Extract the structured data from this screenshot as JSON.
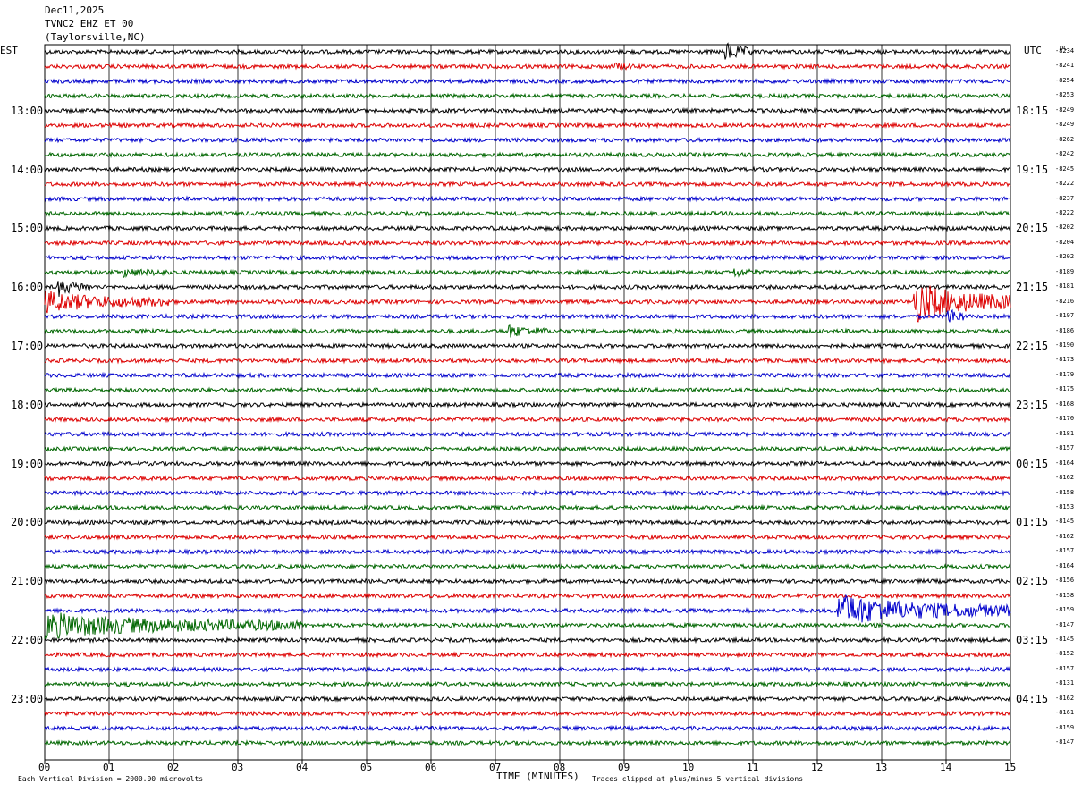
{
  "header": {
    "date": "Dec11,2025",
    "station": "TVNC2 EHZ ET 00",
    "location": "(Taylorsville,NC)"
  },
  "left_zone": "EST",
  "right_zone": "UTC",
  "dc_label": "DC",
  "footer": {
    "scale_note": "Each Vertical Division = 2000.00 microvolts",
    "xlabel": "TIME (MINUTES)",
    "clip_note": "Traces clipped at plus/minus 5 vertical divisions"
  },
  "colors": {
    "trace": [
      "#000000",
      "#dd0000",
      "#0000cc",
      "#006600"
    ],
    "grid": "#000000"
  },
  "chart_data": {
    "type": "line",
    "xlabel": "TIME (MINUTES)",
    "xlim": [
      0,
      15
    ],
    "x_ticks": [
      "00",
      "01",
      "02",
      "03",
      "04",
      "05",
      "06",
      "07",
      "08",
      "09",
      "10",
      "11",
      "12",
      "13",
      "14",
      "15"
    ],
    "rows_per_hour": 4,
    "left_hour_labels": [
      "13:00",
      "14:00",
      "15:00",
      "16:00",
      "17:00",
      "18:00",
      "19:00",
      "20:00",
      "21:00",
      "22:00",
      "23:00"
    ],
    "right_hour_labels": [
      "18:15",
      "19:15",
      "20:15",
      "21:15",
      "22:15",
      "23:15",
      "00:15",
      "01:15",
      "02:15",
      "03:15",
      "04:15"
    ],
    "dc_offsets": [
      "-8234",
      "-8241",
      "-8254",
      "-8253",
      "-8249",
      "-8249",
      "-8262",
      "-8242",
      "-8245",
      "-8222",
      "-8237",
      "-8222",
      "-8202",
      "-8204",
      "-8202",
      "-8189",
      "-8181",
      "-8216",
      "-8197",
      "-8186",
      "-8190",
      "-8173",
      "-8179",
      "-8175",
      "-8168",
      "-8170",
      "-8181",
      "-8157",
      "-8164",
      "-8162",
      "-8158",
      "-8153",
      "-8145",
      "-8162",
      "-8157",
      "-8164",
      "-8156",
      "-8158",
      "-8159",
      "-8147",
      "-8145",
      "-8152",
      "-8157",
      "-8131",
      "-8162",
      "-8161",
      "-8159",
      "-8147"
    ],
    "events": [
      {
        "row": 0,
        "start_min": 10.55,
        "end_min": 11.0,
        "amp": 1.9
      },
      {
        "row": 1,
        "start_min": 8.85,
        "end_min": 9.2,
        "amp": 0.6
      },
      {
        "row": 15,
        "start_min": 1.2,
        "end_min": 1.9,
        "amp": 0.7
      },
      {
        "row": 15,
        "start_min": 10.7,
        "end_min": 11.1,
        "amp": 0.7
      },
      {
        "row": 16,
        "start_min": 0.2,
        "end_min": 0.7,
        "amp": 1.6
      },
      {
        "row": 17,
        "start_min": 0.0,
        "end_min": 2.0,
        "amp": 1.9
      },
      {
        "row": 17,
        "start_min": 13.5,
        "end_min": 15.0,
        "amp": 4.0
      },
      {
        "row": 18,
        "start_min": 14.0,
        "end_min": 14.3,
        "amp": 2.0
      },
      {
        "row": 19,
        "start_min": 7.2,
        "end_min": 7.8,
        "amp": 1.1
      },
      {
        "row": 38,
        "start_min": 12.3,
        "end_min": 15.0,
        "amp": 3.0
      },
      {
        "row": 39,
        "start_min": 0.0,
        "end_min": 4.0,
        "amp": 2.3
      }
    ]
  }
}
